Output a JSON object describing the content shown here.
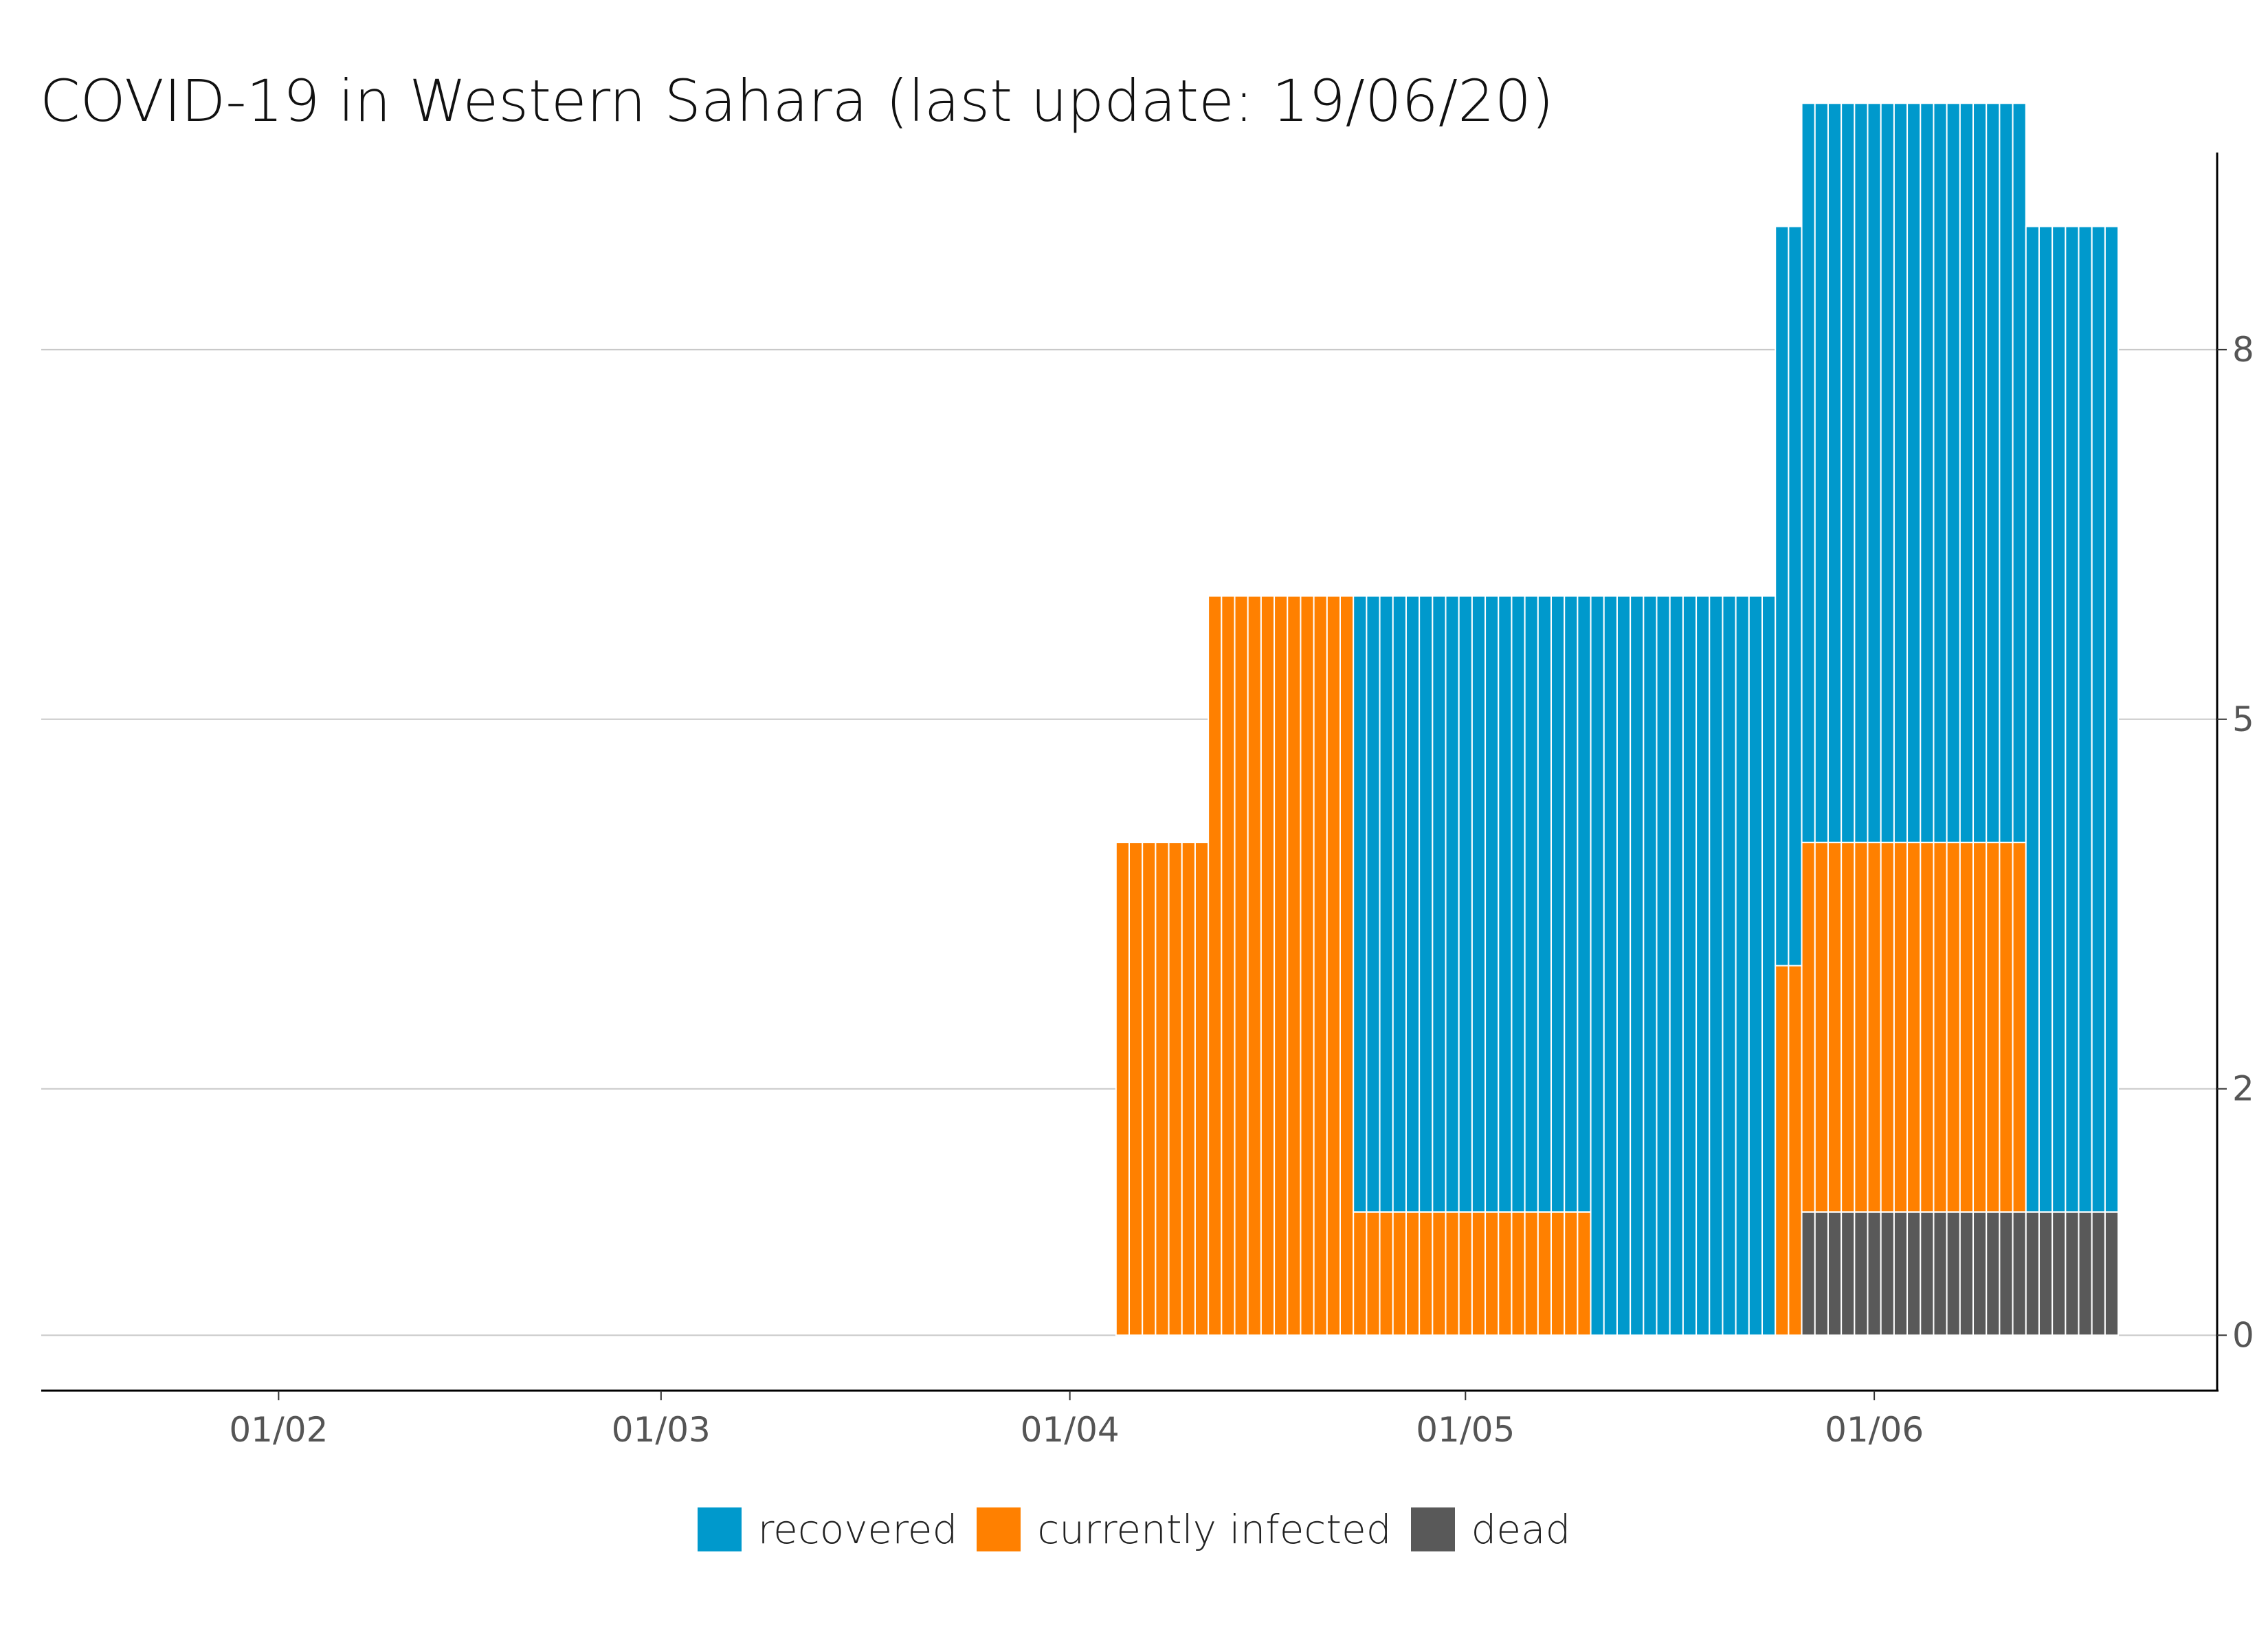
{
  "chart_data": {
    "type": "bar",
    "stacked": true,
    "title": "COVID-19 in Western Sahara (last update: 19/06/20)",
    "xlabel": "",
    "ylabel": "",
    "ylim": [
      -0.45,
      9.6
    ],
    "yticks": [
      0,
      2,
      5,
      8
    ],
    "y_axis_position": "right",
    "grid": "horizontal",
    "legend_position": "bottom",
    "x_ticks": [
      {
        "date": "2020-02-01",
        "label": "01/02"
      },
      {
        "date": "2020-03-01",
        "label": "01/03"
      },
      {
        "date": "2020-04-01",
        "label": "01/04"
      },
      {
        "date": "2020-05-01",
        "label": "01/05"
      },
      {
        "date": "2020-06-01",
        "label": "01/06"
      }
    ],
    "x_range": [
      "2020-01-14",
      "2020-06-27"
    ],
    "series": [
      {
        "name": "dead",
        "color": "#595959",
        "segments": [
          {
            "start": "2020-05-27",
            "end": "2020-06-19",
            "value": 1
          }
        ]
      },
      {
        "name": "currently infected",
        "color": "#FF8000",
        "segments": [
          {
            "start": "2020-04-05",
            "end": "2020-04-11",
            "value": 4
          },
          {
            "start": "2020-04-12",
            "end": "2020-04-22",
            "value": 6
          },
          {
            "start": "2020-04-23",
            "end": "2020-05-10",
            "value": 1
          },
          {
            "start": "2020-05-25",
            "end": "2020-06-12",
            "value": 3
          }
        ]
      },
      {
        "name": "recovered",
        "color": "#0099CC",
        "segments": [
          {
            "start": "2020-04-23",
            "end": "2020-05-10",
            "value": 5
          },
          {
            "start": "2020-05-11",
            "end": "2020-05-24",
            "value": 6
          },
          {
            "start": "2020-05-25",
            "end": "2020-06-12",
            "value": 6
          },
          {
            "start": "2020-06-13",
            "end": "2020-06-19",
            "value": 8
          }
        ]
      }
    ]
  }
}
